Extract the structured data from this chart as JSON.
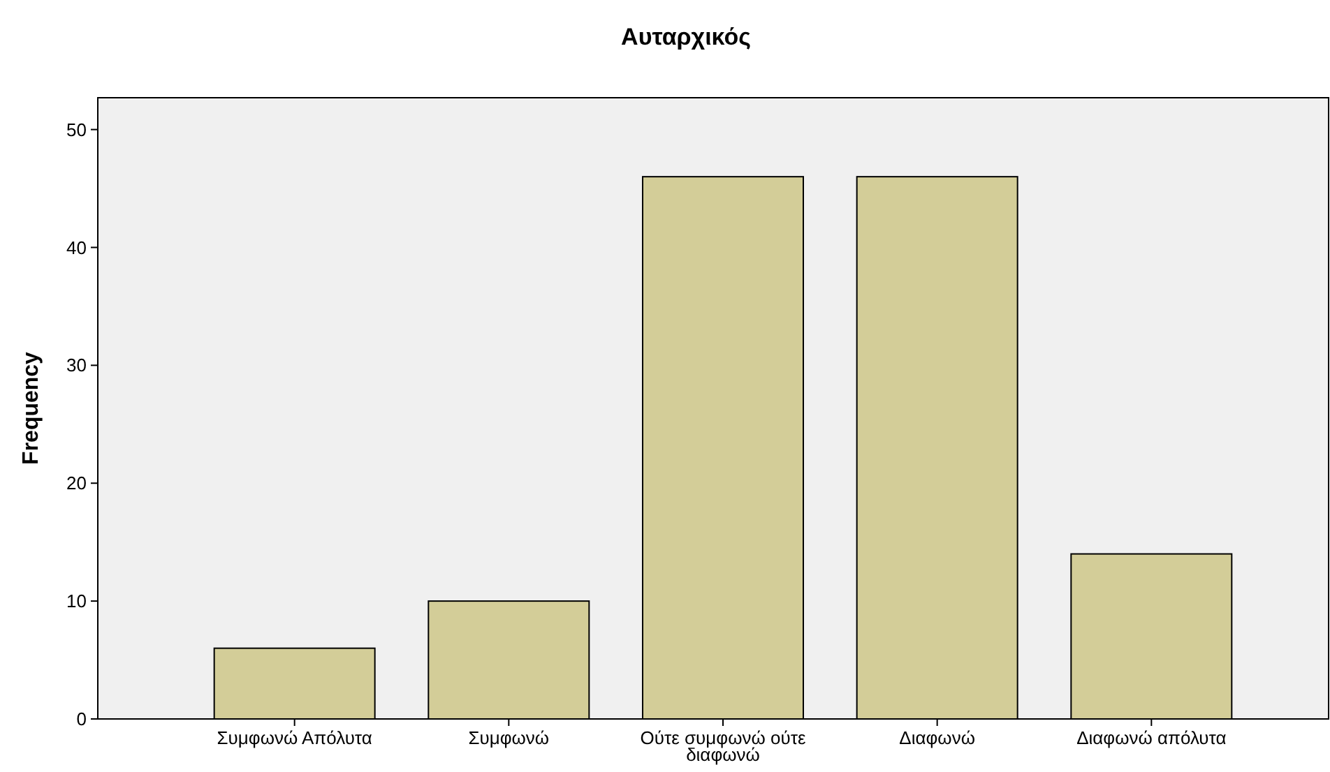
{
  "chart_data": {
    "type": "bar",
    "title": "Αυταρχικός",
    "ylabel": "Frequency",
    "categories": [
      "Συμφωνώ Απόλυτα",
      "Συμφωνώ",
      "Ούτε συμφωνώ ούτε διαφωνώ",
      "Διαφωνώ",
      "Διαφωνώ απόλυτα"
    ],
    "values": [
      6,
      10,
      46,
      46,
      14
    ],
    "color": "#d3cd98",
    "ylim": [
      0,
      52.7
    ],
    "yticks": [
      0,
      10,
      20,
      30,
      40,
      50
    ],
    "grid": false
  }
}
